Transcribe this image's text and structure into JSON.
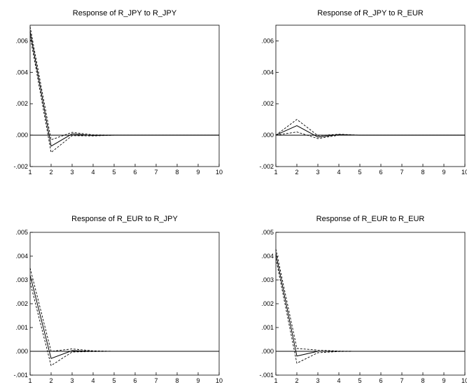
{
  "chart_data": [
    {
      "type": "line",
      "title": "Response of R_JPY to R_JPY",
      "x": [
        1,
        2,
        3,
        4,
        5,
        6,
        7,
        8,
        9,
        10
      ],
      "ylim": [
        -0.002,
        0.007
      ],
      "yticks": [
        "-.002",
        ".000",
        ".002",
        ".004",
        ".006"
      ],
      "ytick_values": [
        -0.002,
        0.0,
        0.002,
        0.004,
        0.006
      ],
      "series": [
        {
          "style": "solid",
          "values": [
            0.0066,
            -0.0007,
            8e-05,
            -2e-05,
            0,
            0,
            0,
            0,
            0,
            0
          ]
        },
        {
          "style": "dashed",
          "values": [
            0.0069,
            -0.0003,
            0.00018,
            2e-05,
            0,
            0,
            0,
            0,
            0,
            0
          ]
        },
        {
          "style": "dashed",
          "values": [
            0.0063,
            -0.0011,
            -3e-05,
            -5e-05,
            0,
            0,
            0,
            0,
            0,
            0
          ]
        }
      ]
    },
    {
      "type": "line",
      "title": "Response of R_JPY to R_EUR",
      "x": [
        1,
        2,
        3,
        4,
        5,
        6,
        7,
        8,
        9,
        10
      ],
      "ylim": [
        -0.002,
        0.007
      ],
      "yticks": [
        "-.002",
        ".000",
        ".002",
        ".004",
        ".006"
      ],
      "ytick_values": [
        -0.002,
        0.0,
        0.002,
        0.004,
        0.006
      ],
      "series": [
        {
          "style": "solid",
          "values": [
            0.0,
            0.0006,
            -0.00012,
            3e-05,
            0,
            0,
            0,
            0,
            0,
            0
          ]
        },
        {
          "style": "dashed",
          "values": [
            0.0,
            0.001,
            -3e-05,
            6e-05,
            0,
            0,
            0,
            0,
            0,
            0
          ]
        },
        {
          "style": "dashed",
          "values": [
            0.0,
            0.0002,
            -0.00022,
            0.0,
            0,
            0,
            0,
            0,
            0,
            0
          ]
        }
      ]
    },
    {
      "type": "line",
      "title": "Response of R_EUR to R_JPY",
      "x": [
        1,
        2,
        3,
        4,
        5,
        6,
        7,
        8,
        9,
        10
      ],
      "ylim": [
        -0.001,
        0.005
      ],
      "yticks": [
        "-.001",
        ".000",
        ".001",
        ".002",
        ".003",
        ".004",
        ".005"
      ],
      "ytick_values": [
        -0.001,
        0.0,
        0.001,
        0.002,
        0.003,
        0.004,
        0.005
      ],
      "series": [
        {
          "style": "solid",
          "values": [
            0.0032,
            -0.0003,
            3e-05,
            0.0,
            0,
            0,
            0,
            0,
            0,
            0
          ]
        },
        {
          "style": "dashed",
          "values": [
            0.0035,
            0.0,
            0.0001,
            2e-05,
            0,
            0,
            0,
            0,
            0,
            0
          ]
        },
        {
          "style": "dashed",
          "values": [
            0.0029,
            -0.0006,
            -3e-05,
            -1e-05,
            0,
            0,
            0,
            0,
            0,
            0
          ]
        }
      ]
    },
    {
      "type": "line",
      "title": "Response of R_EUR to R_EUR",
      "x": [
        1,
        2,
        3,
        4,
        5,
        6,
        7,
        8,
        9,
        10
      ],
      "ylim": [
        -0.001,
        0.005
      ],
      "yticks": [
        "-.001",
        ".000",
        ".001",
        ".002",
        ".003",
        ".004",
        ".005"
      ],
      "ytick_values": [
        -0.001,
        0.0,
        0.001,
        0.002,
        0.003,
        0.004,
        0.005
      ],
      "series": [
        {
          "style": "solid",
          "values": [
            0.0041,
            -0.0002,
            0.0,
            0.0,
            0,
            0,
            0,
            0,
            0,
            0
          ]
        },
        {
          "style": "dashed",
          "values": [
            0.0043,
            0.00012,
            5e-05,
            1e-05,
            0,
            0,
            0,
            0,
            0,
            0
          ]
        },
        {
          "style": "dashed",
          "values": [
            0.0039,
            -0.0005,
            -6e-05,
            -1e-05,
            0,
            0,
            0,
            0,
            0,
            0
          ]
        }
      ]
    }
  ]
}
